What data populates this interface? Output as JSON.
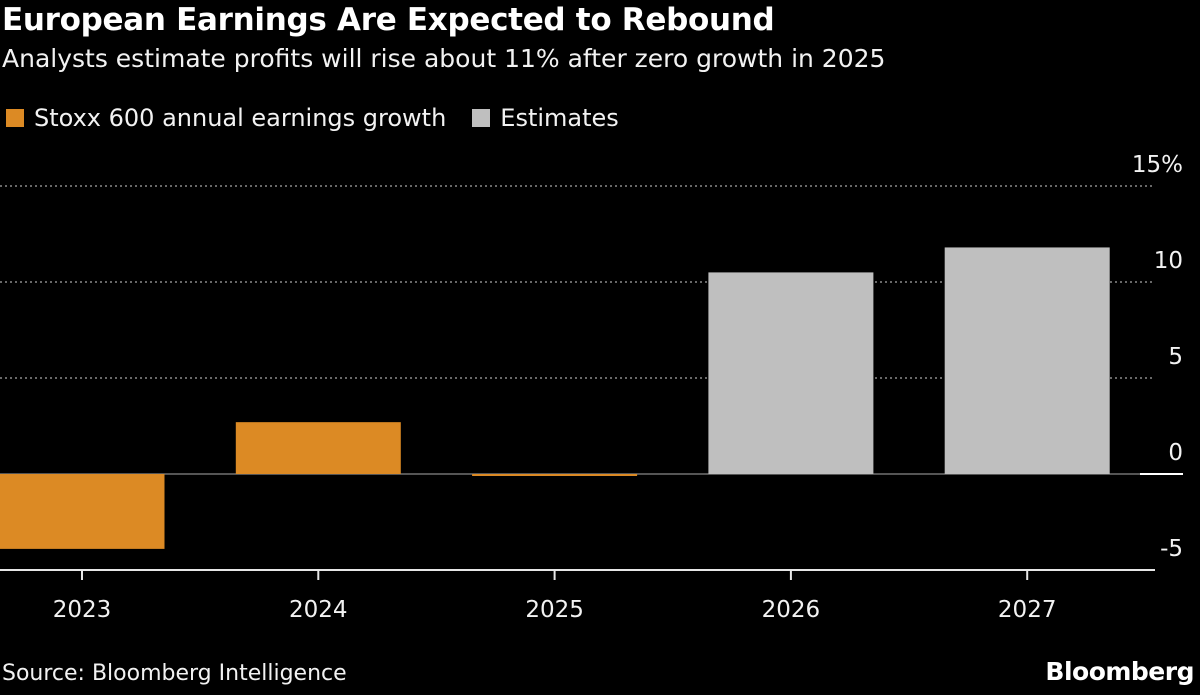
{
  "chart_data": {
    "type": "bar",
    "title": "European Earnings Are Expected to Rebound",
    "subtitle": "Analysts estimate profits will rise about 11% after zero growth in 2025",
    "categories": [
      "2023",
      "2024",
      "2025",
      "2026",
      "2027"
    ],
    "values": [
      -3.9,
      2.7,
      -0.1,
      10.5,
      11.8
    ],
    "series_of_bar": [
      "actual",
      "actual",
      "actual",
      "estimate",
      "estimate"
    ],
    "legend": [
      {
        "name": "Stoxx 600 annual earnings growth",
        "color": "#dc8a24"
      },
      {
        "name": "Estimates",
        "color": "#bfbfbf"
      }
    ],
    "legend_placement": "top-left",
    "ylim": [
      -5,
      15
    ],
    "yticks": [
      -5,
      0,
      5,
      10,
      15
    ],
    "ytick_labels": [
      "-5",
      "0",
      "5",
      "10",
      "15%"
    ],
    "y_axis_side": "right",
    "grid": true,
    "source": "Source: Bloomberg Intelligence",
    "logo": "Bloomberg"
  }
}
